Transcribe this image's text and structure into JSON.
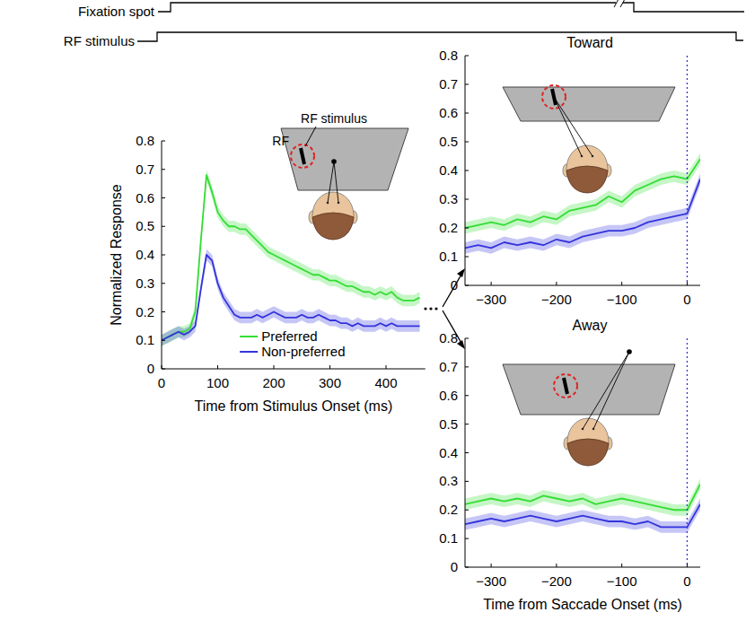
{
  "timeline": [
    "Fixation spot",
    "RF stimulus"
  ],
  "chart_data": [
    {
      "type": "line",
      "xlabel": "Time from Stimulus Onset (ms)",
      "ylabel": "Normalized Response",
      "annotations": [
        "RF stimulus",
        "RF"
      ],
      "x": [
        0,
        10,
        20,
        30,
        40,
        50,
        60,
        70,
        80,
        90,
        100,
        110,
        120,
        130,
        140,
        150,
        160,
        170,
        180,
        190,
        200,
        210,
        220,
        230,
        240,
        250,
        260,
        270,
        280,
        290,
        300,
        310,
        320,
        330,
        340,
        350,
        360,
        370,
        380,
        390,
        400,
        410,
        420,
        430,
        440,
        450,
        460
      ],
      "series": [
        {
          "name": "Preferred",
          "color": "#33dd33",
          "error": 0.02,
          "values": [
            0.1,
            0.11,
            0.12,
            0.13,
            0.13,
            0.14,
            0.2,
            0.45,
            0.68,
            0.62,
            0.55,
            0.52,
            0.5,
            0.5,
            0.49,
            0.49,
            0.47,
            0.45,
            0.43,
            0.41,
            0.4,
            0.39,
            0.38,
            0.37,
            0.36,
            0.35,
            0.34,
            0.33,
            0.33,
            0.32,
            0.31,
            0.31,
            0.3,
            0.29,
            0.29,
            0.28,
            0.27,
            0.27,
            0.26,
            0.27,
            0.26,
            0.27,
            0.25,
            0.24,
            0.24,
            0.24,
            0.25
          ]
        },
        {
          "name": "Non-preferred",
          "color": "#3333dd",
          "error": 0.02,
          "values": [
            0.1,
            0.11,
            0.12,
            0.13,
            0.12,
            0.13,
            0.15,
            0.28,
            0.4,
            0.38,
            0.3,
            0.25,
            0.22,
            0.19,
            0.18,
            0.18,
            0.18,
            0.19,
            0.18,
            0.19,
            0.2,
            0.19,
            0.18,
            0.18,
            0.18,
            0.19,
            0.18,
            0.18,
            0.19,
            0.18,
            0.17,
            0.17,
            0.16,
            0.16,
            0.15,
            0.16,
            0.15,
            0.15,
            0.15,
            0.16,
            0.15,
            0.16,
            0.15,
            0.15,
            0.15,
            0.15,
            0.15
          ]
        }
      ],
      "xlim": [
        0,
        470
      ],
      "xticks": [
        0,
        100,
        200,
        300,
        400
      ],
      "ylim": [
        0,
        0.8
      ],
      "yticks": [
        0,
        0.1,
        0.2,
        0.3,
        0.4,
        0.5,
        0.6,
        0.7,
        0.8
      ],
      "legend": "lower center"
    },
    {
      "type": "line",
      "title": "Toward",
      "x": [
        -340,
        -320,
        -300,
        -280,
        -260,
        -240,
        -220,
        -200,
        -180,
        -160,
        -140,
        -120,
        -100,
        -80,
        -60,
        -40,
        -20,
        0,
        20
      ],
      "series": [
        {
          "color": "#33dd33",
          "error": 0.02,
          "values": [
            0.2,
            0.21,
            0.22,
            0.21,
            0.23,
            0.22,
            0.24,
            0.23,
            0.26,
            0.27,
            0.28,
            0.31,
            0.29,
            0.33,
            0.35,
            0.37,
            0.38,
            0.37,
            0.44
          ]
        },
        {
          "color": "#3333dd",
          "error": 0.02,
          "values": [
            0.13,
            0.14,
            0.13,
            0.15,
            0.14,
            0.15,
            0.14,
            0.16,
            0.15,
            0.17,
            0.18,
            0.19,
            0.19,
            0.2,
            0.22,
            0.23,
            0.24,
            0.25,
            0.37
          ]
        }
      ],
      "reference_x": 0,
      "xlim": [
        -340,
        20
      ],
      "xticks": [
        {
          "value": -300,
          "label": "−300"
        },
        {
          "value": -200,
          "label": "−200"
        },
        {
          "value": -100,
          "label": "−100"
        },
        0
      ],
      "ylim": [
        0,
        0.8
      ],
      "yticks": [
        0,
        0.1,
        0.2,
        0.3,
        0.4,
        0.5,
        0.6,
        0.7,
        0.8
      ]
    },
    {
      "type": "line",
      "title": "Away",
      "xlabel": "Time from Saccade Onset (ms)",
      "x": [
        -340,
        -320,
        -300,
        -280,
        -260,
        -240,
        -220,
        -200,
        -180,
        -160,
        -140,
        -120,
        -100,
        -80,
        -60,
        -40,
        -20,
        0,
        20
      ],
      "series": [
        {
          "color": "#33dd33",
          "error": 0.02,
          "values": [
            0.22,
            0.23,
            0.24,
            0.23,
            0.24,
            0.23,
            0.25,
            0.24,
            0.23,
            0.24,
            0.22,
            0.23,
            0.24,
            0.23,
            0.22,
            0.21,
            0.2,
            0.2,
            0.29
          ]
        },
        {
          "color": "#3333dd",
          "error": 0.02,
          "values": [
            0.15,
            0.16,
            0.17,
            0.16,
            0.17,
            0.18,
            0.17,
            0.16,
            0.17,
            0.18,
            0.17,
            0.16,
            0.16,
            0.15,
            0.16,
            0.14,
            0.14,
            0.14,
            0.22
          ]
        }
      ],
      "reference_x": 0,
      "xlim": [
        -340,
        20
      ],
      "xticks": [
        {
          "value": -300,
          "label": "−300"
        },
        {
          "value": -200,
          "label": "−200"
        },
        {
          "value": -100,
          "label": "−100"
        },
        0
      ],
      "ylim": [
        0,
        0.8
      ],
      "yticks": [
        0,
        0.1,
        0.2,
        0.3,
        0.4,
        0.5,
        0.6,
        0.7,
        0.8
      ]
    }
  ]
}
